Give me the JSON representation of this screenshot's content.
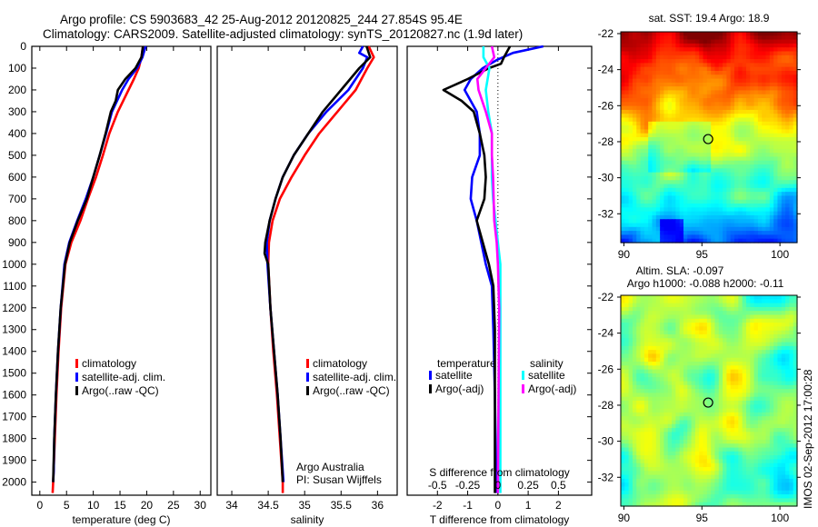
{
  "title_line1": "Argo profile: CS 5903683_42 25-Aug-2012 20120825_244 27.854S 95.4E",
  "title_line2": "Climatology: CARS2009. Satellite-adjusted climatology: synTS_20120827.nc (1.9d later)",
  "footer_stamp": "IMOS 02-Sep-2012 17:00:28",
  "colors": {
    "climatology": "#ff0000",
    "satellite": "#0000ff",
    "argo": "#000000",
    "sal_satellite": "#00ffff",
    "sal_argo": "#ff00ff"
  },
  "chart_data": [
    {
      "type": "line",
      "id": "temperature",
      "xlabel": "temperature (deg C)",
      "ylabel": "depth",
      "xlim": [
        -1.5,
        32
      ],
      "ylim": [
        2060,
        0
      ],
      "xticks": [
        0,
        5,
        10,
        15,
        20,
        25,
        30
      ],
      "yticks": [
        0,
        100,
        200,
        300,
        400,
        500,
        600,
        700,
        800,
        900,
        1000,
        1100,
        1200,
        1300,
        1400,
        1500,
        1600,
        1700,
        1800,
        1900,
        2000
      ],
      "legend": [
        "climatology",
        "satellite-adj. clim.",
        "Argo(..raw -QC)"
      ],
      "series": [
        {
          "name": "climatology",
          "color": "#ff0000",
          "depth": [
            0,
            50,
            100,
            150,
            200,
            300,
            400,
            500,
            600,
            700,
            800,
            900,
            1000,
            1200,
            1400,
            1600,
            1800,
            2000,
            2050
          ],
          "values": [
            19.3,
            19.0,
            18.5,
            17.6,
            16.6,
            14.6,
            13.0,
            11.8,
            10.5,
            9.0,
            7.6,
            5.9,
            4.8,
            4.0,
            3.5,
            3.1,
            2.8,
            2.5,
            2.4
          ]
        },
        {
          "name": "satellite-adj. clim.",
          "color": "#0000ff",
          "depth": [
            0,
            50,
            100,
            150,
            200,
            300,
            400,
            500,
            600,
            700,
            800,
            900,
            1000,
            1200,
            1400,
            1600,
            1800,
            1950,
            2000
          ],
          "values": [
            19.8,
            19.2,
            18.2,
            16.6,
            15.4,
            13.5,
            12.4,
            11.2,
            10.0,
            8.6,
            7.0,
            5.5,
            4.6,
            3.9,
            3.4,
            3.0,
            2.7,
            2.6,
            2.5
          ]
        },
        {
          "name": "Argo(..raw -QC)",
          "color": "#000000",
          "depth": [
            0,
            50,
            100,
            150,
            200,
            250,
            300,
            400,
            500,
            600,
            700,
            800,
            900,
            1000,
            1200,
            1400,
            1600,
            1800,
            2000
          ],
          "values": [
            19.3,
            19.0,
            17.9,
            16.0,
            14.6,
            14.2,
            13.3,
            12.3,
            11.2,
            10.0,
            8.8,
            7.1,
            5.6,
            4.7,
            3.9,
            3.4,
            3.0,
            2.7,
            2.5
          ]
        }
      ]
    },
    {
      "type": "line",
      "id": "salinity",
      "xlabel": "salinity",
      "xlim": [
        33.8,
        36.27
      ],
      "ylim": [
        2060,
        0
      ],
      "xticks": [
        34,
        34.5,
        35,
        35.5,
        36
      ],
      "legend": [
        "climatology",
        "satellite-adj. clim.",
        "Argo(..raw -QC)"
      ],
      "annotation": [
        "Argo Australia",
        "PI: Susan Wijffels"
      ],
      "series": [
        {
          "name": "climatology",
          "color": "#ff0000",
          "depth": [
            0,
            50,
            100,
            200,
            300,
            400,
            500,
            600,
            700,
            800,
            900,
            1000,
            1200,
            1400,
            1600,
            1800,
            2000,
            2050
          ],
          "values": [
            35.88,
            35.95,
            35.86,
            35.7,
            35.45,
            35.2,
            35.0,
            34.82,
            34.66,
            34.56,
            34.51,
            34.5,
            34.53,
            34.57,
            34.62,
            34.66,
            34.7,
            34.7
          ]
        },
        {
          "name": "satellite-adj. clim.",
          "color": "#0000ff",
          "depth": [
            0,
            30,
            50,
            100,
            200,
            300,
            400,
            500,
            600,
            700,
            800,
            900,
            1000,
            1200,
            1400,
            1600,
            1800,
            2000
          ],
          "values": [
            35.8,
            35.75,
            35.86,
            35.8,
            35.6,
            35.3,
            35.05,
            34.85,
            34.7,
            34.6,
            34.52,
            34.48,
            34.49,
            34.53,
            34.58,
            34.63,
            34.67,
            34.71
          ]
        },
        {
          "name": "Argo(..raw -QC)",
          "color": "#000000",
          "depth": [
            0,
            50,
            100,
            200,
            300,
            400,
            500,
            600,
            700,
            800,
            900,
            950,
            1000,
            1200,
            1400,
            1600,
            1800,
            2000
          ],
          "values": [
            35.85,
            35.9,
            35.75,
            35.5,
            35.25,
            35.05,
            34.85,
            34.7,
            34.6,
            34.52,
            34.46,
            34.45,
            34.5,
            34.53,
            34.58,
            34.63,
            34.67,
            34.7
          ]
        }
      ]
    },
    {
      "type": "line",
      "id": "difference",
      "xlabel": "T difference from climatology",
      "x2label": "S difference from climatology",
      "xlim": [
        -3,
        3.1
      ],
      "x2lim": [
        -0.75,
        0.775
      ],
      "ylim": [
        2060,
        0
      ],
      "xticks": [
        -2,
        -1,
        0,
        1,
        2
      ],
      "x2ticks": [
        -0.5,
        -0.25,
        0,
        0.25,
        0.5
      ],
      "x2ticklabels": [
        "-0.5",
        "-0.25",
        "0",
        "0.25",
        "0.5"
      ],
      "legend_temperature": {
        "title": "temperature",
        "items": [
          "satellite",
          "Argo(-adj)"
        ]
      },
      "legend_salinity": {
        "title": "salinity",
        "items": [
          "satellite",
          "Argo(-adj)"
        ]
      },
      "series": [
        {
          "name": "T satellite",
          "axis": "T",
          "color": "#0000ff",
          "depth": [
            0,
            30,
            60,
            100,
            150,
            200,
            300,
            400,
            500,
            600,
            700,
            800,
            900,
            1000,
            1100,
            1300,
            1600,
            2050
          ],
          "values": [
            1.5,
            0.5,
            0.0,
            -0.5,
            -0.9,
            -1.1,
            -0.7,
            -0.6,
            -0.6,
            -0.85,
            -0.9,
            -0.7,
            -0.55,
            -0.4,
            -0.2,
            -0.15,
            -0.1,
            -0.05
          ]
        },
        {
          "name": "T Argo(-adj)",
          "axis": "T",
          "color": "#000000",
          "depth": [
            0,
            50,
            80,
            100,
            150,
            200,
            250,
            300,
            400,
            500,
            600,
            700,
            800,
            900,
            1000,
            1100,
            1300,
            1600,
            2050
          ],
          "values": [
            0.4,
            0.2,
            0.1,
            -0.3,
            -1.0,
            -1.8,
            -1.2,
            -0.8,
            -0.6,
            -0.45,
            -0.4,
            -0.45,
            -0.7,
            -0.5,
            -0.3,
            -0.15,
            -0.1,
            -0.1,
            -0.1
          ]
        },
        {
          "name": "S satellite",
          "axis": "S",
          "color": "#00ffff",
          "depth": [
            0,
            50,
            100,
            200,
            300,
            400,
            500,
            600,
            700,
            800,
            900,
            1000,
            1200,
            2050
          ],
          "values": [
            -0.12,
            -0.12,
            -0.07,
            -0.1,
            -0.08,
            -0.05,
            -0.05,
            -0.05,
            -0.04,
            -0.02,
            0.0,
            0.02,
            0.02,
            0.02
          ]
        },
        {
          "name": "S Argo(-adj)",
          "axis": "S",
          "color": "#ff00ff",
          "depth": [
            0,
            50,
            100,
            150,
            200,
            300,
            400,
            500,
            600,
            800,
            900,
            1000,
            1200,
            2050
          ],
          "values": [
            -0.05,
            -0.03,
            -0.1,
            -0.17,
            -0.16,
            -0.1,
            -0.05,
            -0.05,
            -0.04,
            -0.03,
            -0.01,
            0.0,
            0.01,
            0.0
          ]
        }
      ]
    },
    {
      "type": "heatmap",
      "id": "sst-map",
      "title": "sat. SST: 19.4 Argo: 18.9",
      "xlim": [
        89.8,
        101.1
      ],
      "ylim": [
        -33.6,
        -21.9
      ],
      "xticks": [
        90,
        95,
        100
      ],
      "yticks": [
        -22,
        -24,
        -26,
        -28,
        -30,
        -32
      ],
      "float_position": {
        "lon": 95.4,
        "lat": -27.854
      }
    },
    {
      "type": "heatmap",
      "id": "sla-map",
      "title": "Altim. SLA: -0.097",
      "subtitle": "Argo h1000: -0.088 h2000: -0.11",
      "xlim": [
        89.8,
        101.1
      ],
      "ylim": [
        -33.6,
        -21.9
      ],
      "xticks": [
        90,
        95,
        100
      ],
      "yticks": [
        -22,
        -24,
        -26,
        -28,
        -30,
        -32
      ],
      "float_position": {
        "lon": 95.4,
        "lat": -27.854
      }
    }
  ]
}
